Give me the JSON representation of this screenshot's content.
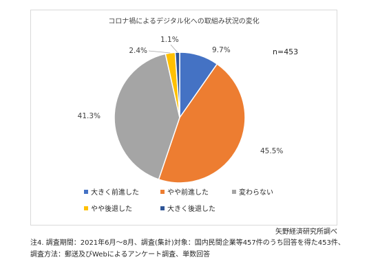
{
  "chart_data": {
    "type": "pie",
    "title": "コロナ禍によるデジタル化への取組み状況の変化",
    "annotation": "n=453",
    "categories": [
      "大きく前進した",
      "やや前進した",
      "変わらない",
      "やや後退した",
      "大きく後退した"
    ],
    "values": [
      9.7,
      45.5,
      41.3,
      2.4,
      1.1
    ],
    "value_labels": [
      "9.7%",
      "45.5%",
      "41.3%",
      "2.4%",
      "1.1%"
    ],
    "colors": [
      "#4472C4",
      "#ED7D31",
      "#A5A5A5",
      "#FFC000",
      "#2F5597"
    ],
    "legend_position": "bottom"
  },
  "source": "矢野経済研究所調べ",
  "notes": [
    "注4.  調査期間：2021年6月～8月、調査(集計)対象：国内民間企業等457件のうち回答を得た453件、",
    "調査方法：郵送及びWebによるアンケート調査、単数回答"
  ]
}
